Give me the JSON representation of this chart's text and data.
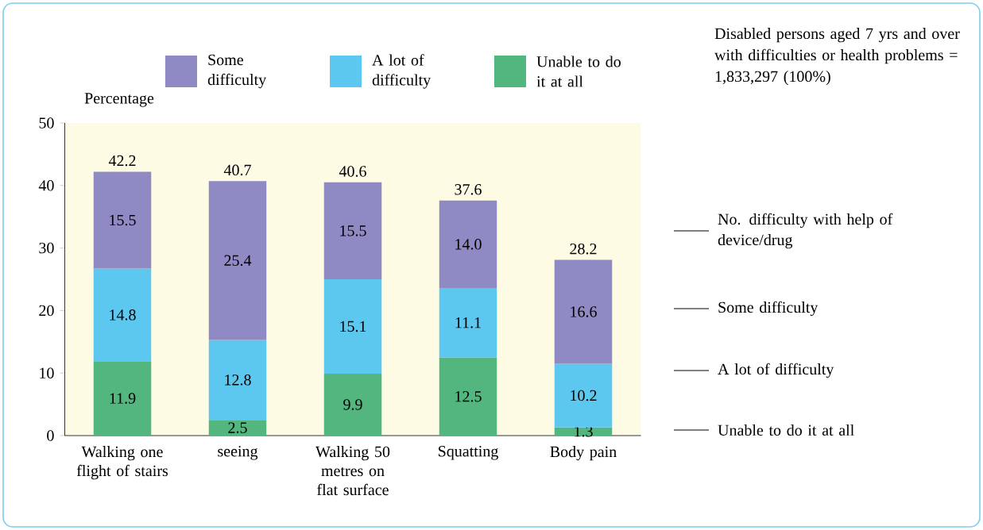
{
  "chart_data": {
    "type": "bar",
    "stacked": true,
    "ylabel": "Percentage",
    "categories": [
      "Walking one flight of stairs",
      "seeing",
      "Walking 50 metres on flat surface",
      "Squatting",
      "Body pain"
    ],
    "series": [
      {
        "name": "Unable to do it at all",
        "color": "#52b67e",
        "values": [
          11.9,
          2.5,
          9.9,
          12.5,
          1.3
        ],
        "value_labels": [
          "11.9",
          "2.5",
          "9.9",
          "12.5",
          "1.3"
        ]
      },
      {
        "name": "A lot of difficulty",
        "color": "#5cc8f0",
        "values": [
          14.8,
          12.8,
          15.1,
          11.1,
          10.2
        ],
        "value_labels": [
          "14.8",
          "12.8",
          "15.1",
          "11.1",
          "10.2"
        ]
      },
      {
        "name": "Some difficulty",
        "color": "#8f89c4",
        "values": [
          15.5,
          25.4,
          15.5,
          14.0,
          16.6
        ],
        "value_labels": [
          "15.5",
          "25.4",
          "15.5",
          "14.0",
          "16.6"
        ]
      }
    ],
    "totals": [
      "42.2",
      "40.7",
      "40.6",
      "37.6",
      "28.2"
    ],
    "legend": "top",
    "ylim": [
      0,
      50
    ],
    "yticks": [
      0,
      10,
      20,
      30,
      40,
      50
    ],
    "annotations": [
      "Disabled persons aged 7 yrs and over with difficulties or health problems = 1,833,297 (100%)",
      "No. difficulty with help of device/drug",
      "Some difficulty",
      "A lot of difficulty",
      "Unable to do it at all"
    ]
  }
}
